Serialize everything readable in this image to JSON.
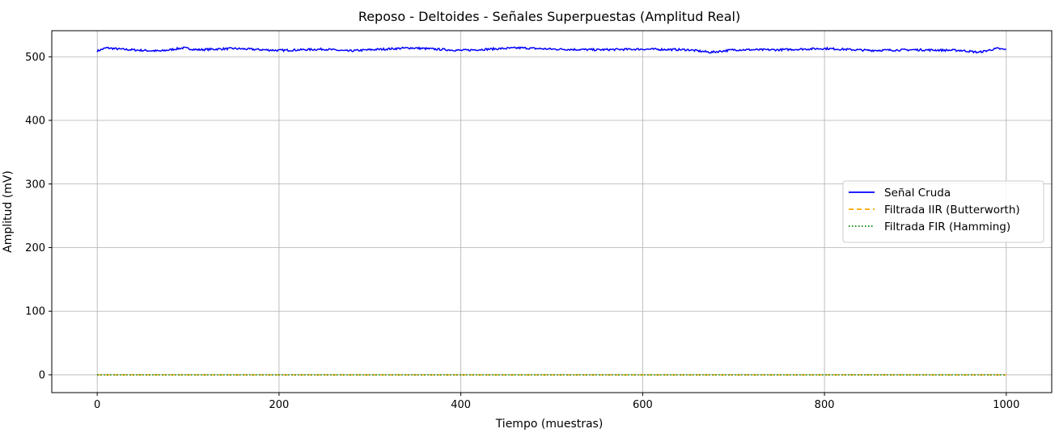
{
  "chart_data": {
    "type": "line",
    "title": "Reposo - Deltoides - Señales Superpuestas (Amplitud Real)",
    "xlabel": "Tiempo (muestras)",
    "ylabel": "Amplitud (mV)",
    "xlim": [
      -50,
      1050
    ],
    "ylim": [
      -28,
      541
    ],
    "xticks": [
      0,
      200,
      400,
      600,
      800,
      1000
    ],
    "yticks": [
      0,
      100,
      200,
      300,
      400,
      500
    ],
    "grid": true,
    "legend_position": "center-right",
    "x_range": [
      0,
      1000
    ],
    "series": [
      {
        "name": "Señal Cruda",
        "color": "#0000ff",
        "style": "solid",
        "baseline": 511,
        "y_keypoints": [
          [
            0,
            509
          ],
          [
            10,
            514
          ],
          [
            25,
            512
          ],
          [
            50,
            510
          ],
          [
            70,
            509
          ],
          [
            95,
            514
          ],
          [
            110,
            511
          ],
          [
            150,
            513
          ],
          [
            200,
            510
          ],
          [
            250,
            512
          ],
          [
            275,
            509
          ],
          [
            300,
            511
          ],
          [
            345,
            514
          ],
          [
            400,
            510
          ],
          [
            430,
            512
          ],
          [
            465,
            514
          ],
          [
            500,
            512
          ],
          [
            550,
            511
          ],
          [
            600,
            512
          ],
          [
            650,
            511
          ],
          [
            675,
            507
          ],
          [
            700,
            511
          ],
          [
            750,
            511
          ],
          [
            800,
            513
          ],
          [
            850,
            510
          ],
          [
            900,
            511
          ],
          [
            950,
            510
          ],
          [
            970,
            507
          ],
          [
            990,
            513
          ],
          [
            1000,
            511
          ]
        ]
      },
      {
        "name": "Filtrada IIR (Butterworth)",
        "color": "#ffa500",
        "style": "dashed",
        "baseline": 0,
        "y_keypoints": [
          [
            0,
            0
          ],
          [
            1000,
            0
          ]
        ]
      },
      {
        "name": "Filtrada FIR (Hamming)",
        "color": "#008000",
        "style": "dotted",
        "baseline": 0,
        "y_keypoints": [
          [
            0,
            0
          ],
          [
            1000,
            0
          ]
        ]
      }
    ]
  }
}
